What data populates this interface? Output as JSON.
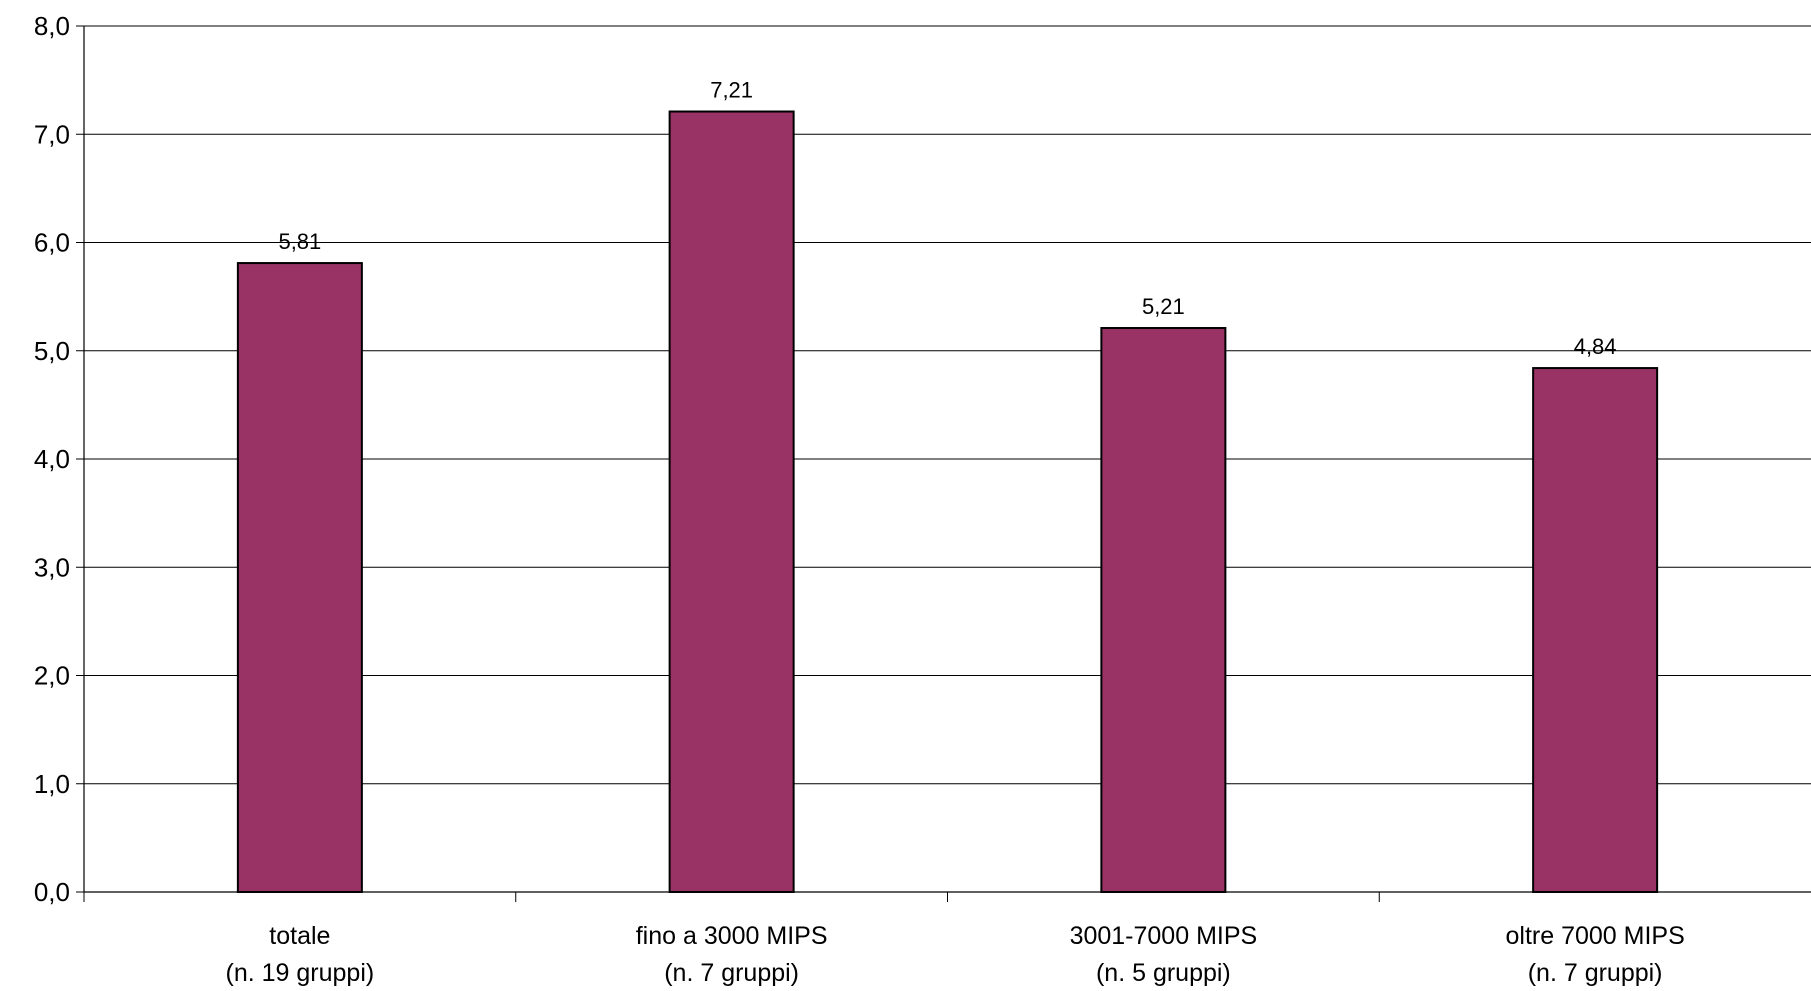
{
  "chart_data": {
    "type": "bar",
    "categories": [
      [
        "totale",
        "(n. 19 gruppi)"
      ],
      [
        "fino a 3000 MIPS",
        "(n. 7 gruppi)"
      ],
      [
        "3001-7000 MIPS",
        "(n. 5 gruppi)"
      ],
      [
        "oltre 7000 MIPS",
        "(n. 7 gruppi)"
      ]
    ],
    "values": [
      5.81,
      7.21,
      5.21,
      4.84
    ],
    "data_labels": [
      "5,81",
      "7,21",
      "5,21",
      "4,84"
    ],
    "y_ticks": [
      "0,0",
      "1,0",
      "2,0",
      "3,0",
      "4,0",
      "5,0",
      "6,0",
      "7,0",
      "8,0"
    ],
    "ylim": [
      0,
      8
    ],
    "y_step": 1,
    "grid": true,
    "legend": "none",
    "bar_color": "#993366",
    "title": "",
    "xlabel": "",
    "ylabel": ""
  }
}
